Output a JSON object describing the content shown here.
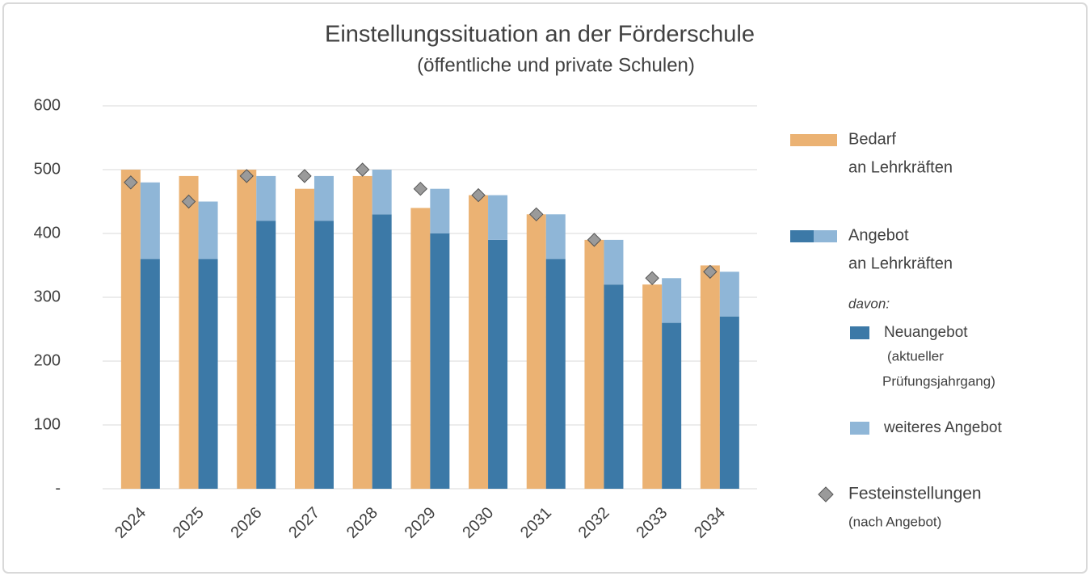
{
  "chart_data": {
    "type": "bar",
    "title": "Einstellungssituation an der Förderschule",
    "subtitle": "(öffentliche und private Schulen)",
    "categories": [
      "2024",
      "2025",
      "2026",
      "2027",
      "2028",
      "2029",
      "2030",
      "2031",
      "2032",
      "2033",
      "2034"
    ],
    "series": [
      {
        "name": [
          "Bedarf",
          "an Lehrkräften"
        ],
        "color": "#ebb273",
        "values": [
          500,
          490,
          500,
          470,
          490,
          440,
          460,
          430,
          390,
          320,
          350
        ]
      },
      {
        "name": [
          "Neuangebot"
        ],
        "note": [
          "(aktueller",
          "Prüfungsjahrgang)"
        ],
        "color": "#3c79a7",
        "values": [
          360,
          360,
          420,
          420,
          430,
          400,
          390,
          360,
          320,
          260,
          270
        ]
      },
      {
        "name": [
          "weiteres Angebot"
        ],
        "color": "#8fb6d7",
        "values": [
          120,
          90,
          70,
          70,
          70,
          70,
          70,
          70,
          70,
          70,
          70
        ]
      },
      {
        "name": [
          "Festeinstellungen"
        ],
        "note": [
          "(nach Angebot)"
        ],
        "type": "diamond",
        "color": "#9a9a9a",
        "values": [
          480,
          450,
          490,
          490,
          500,
          470,
          460,
          430,
          390,
          330,
          340
        ]
      }
    ],
    "legend_group": {
      "name": [
        "Angebot",
        "an Lehrkräften"
      ],
      "note": "davon:"
    },
    "ylim": [
      0,
      600
    ],
    "yticks": [
      {
        "value": 0,
        "label": "-"
      },
      100,
      200,
      300,
      400,
      500,
      600
    ],
    "grid": true
  }
}
